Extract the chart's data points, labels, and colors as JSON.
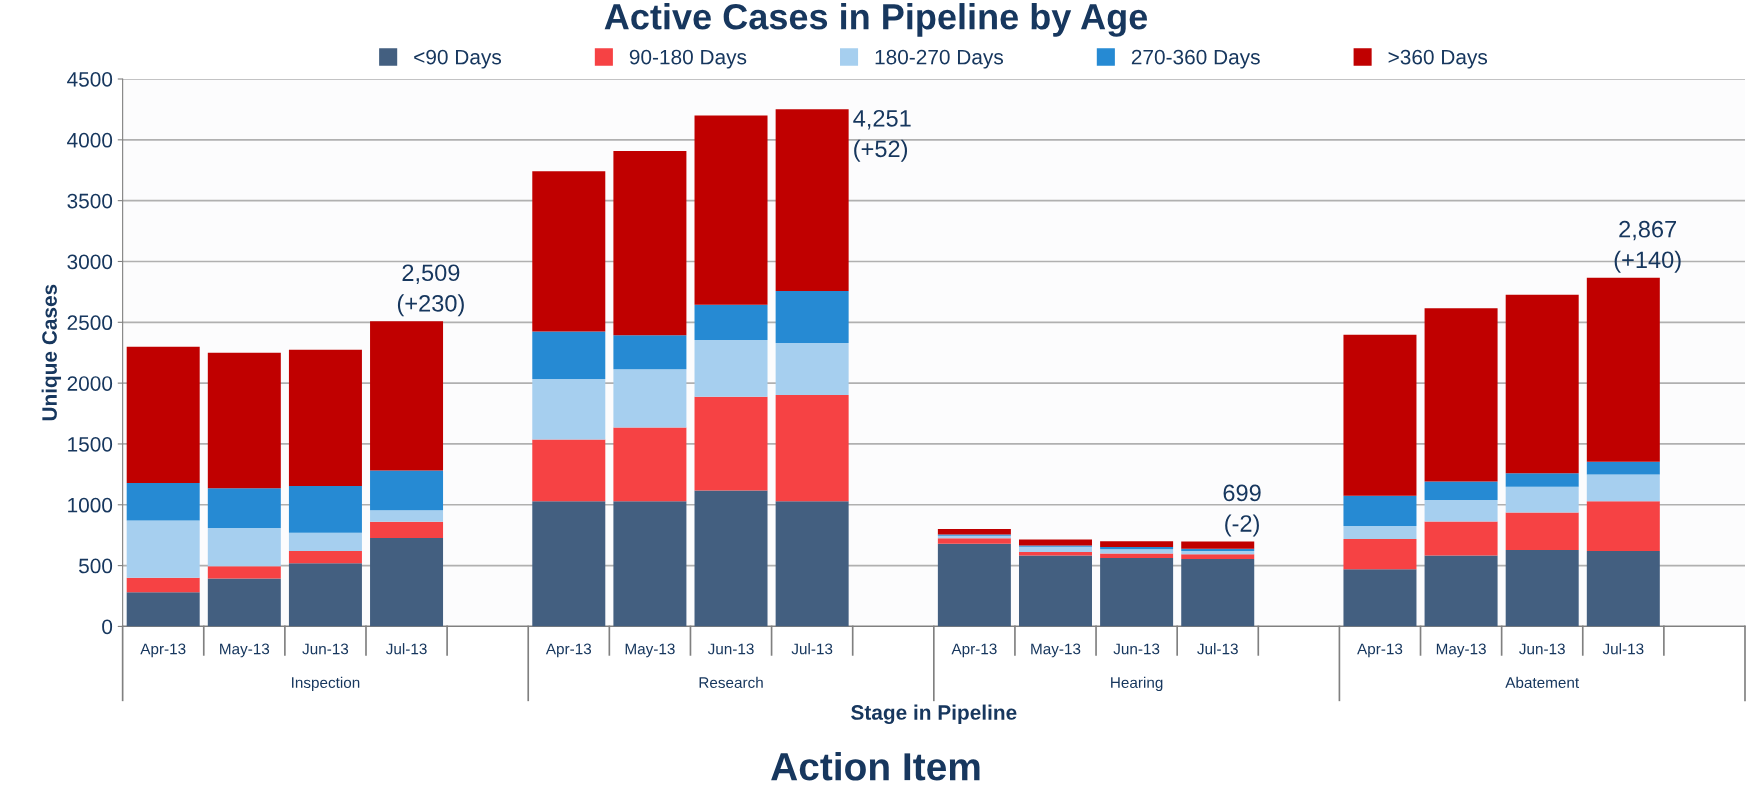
{
  "chart_data": {
    "type": "bar",
    "stacked": true,
    "title": "Active Cases in Pipeline by Age",
    "xlabel": "Stage in Pipeline",
    "ylabel": "Unique Cases",
    "categories": [
      "Apr-13",
      "May-13",
      "Jun-13",
      "Jul-13",
      null,
      "Apr-13",
      "May-13",
      "Jun-13",
      "Jul-13",
      null,
      "Apr-13",
      "May-13",
      "Jun-13",
      "Jul-13",
      null,
      "Apr-13",
      "May-13",
      "Jun-13",
      "Jul-13",
      null
    ],
    "series": [
      {
        "name": "<90 Days",
        "color": "#435f80",
        "values": [
          280,
          395,
          520,
          727,
          null,
          1030,
          1030,
          1118,
          1030,
          null,
          680,
          583,
          562,
          554,
          null,
          470,
          583,
          628,
          620,
          null
        ]
      },
      {
        "name": "90-180 Days",
        "color": "#f64244",
        "values": [
          120,
          100,
          100,
          134,
          null,
          506,
          606,
          770,
          873,
          null,
          45,
          29,
          37,
          40,
          null,
          248,
          280,
          309,
          410,
          null
        ]
      },
      {
        "name": "180-270 Days",
        "color": "#a6cfef",
        "values": [
          470,
          315,
          150,
          94,
          null,
          497,
          479,
          466,
          427,
          null,
          20,
          43,
          35,
          26,
          null,
          108,
          177,
          211,
          219,
          null
        ]
      },
      {
        "name": "270-360 Days",
        "color": "#268ad3",
        "values": [
          310,
          325,
          385,
          327,
          null,
          391,
          279,
          291,
          427,
          null,
          10,
          10,
          18,
          19,
          null,
          248,
          151,
          111,
          105,
          null
        ]
      },
      {
        "name": ">360 Days",
        "color": "#c00000",
        "values": [
          1120,
          1115,
          1120,
          1227,
          null,
          1318,
          1515,
          1554,
          1494,
          null,
          45,
          50,
          49,
          60,
          null,
          1323,
          1425,
          1468,
          1513,
          null
        ]
      }
    ],
    "totals": [
      null,
      null,
      null,
      "2,509\n(+230)",
      null,
      null,
      null,
      null,
      "4,251\n(+52)",
      null,
      null,
      null,
      null,
      "699\n(-2)",
      null,
      null,
      null,
      null,
      "2,867\n(+140)",
      null
    ],
    "annotations": [
      "Inspection",
      "Research",
      "Hearing",
      "Abatement",
      "Action Item"
    ],
    "ylim": [
      0,
      4500
    ],
    "yticks": [
      0,
      500,
      1000,
      1500,
      2000,
      2500,
      3000,
      3500,
      4000,
      4500
    ],
    "grid": "y",
    "legend": "top"
  }
}
